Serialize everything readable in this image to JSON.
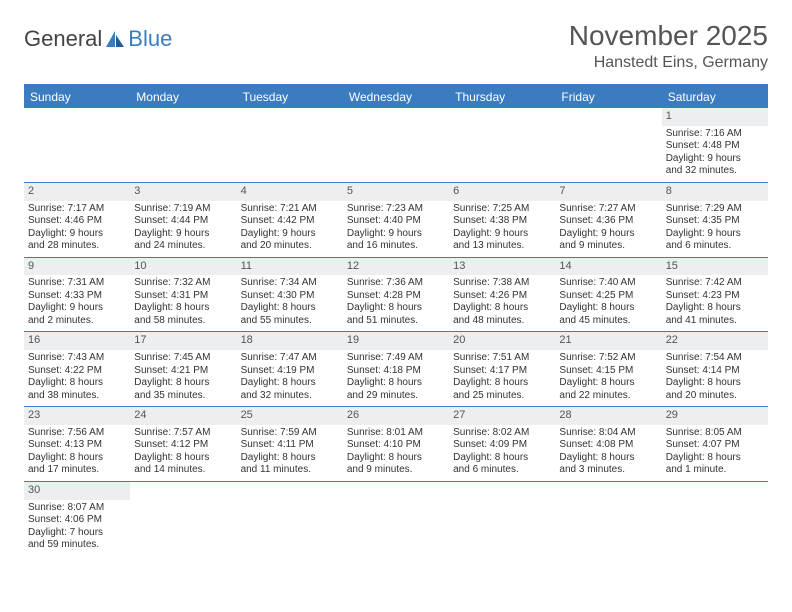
{
  "logo": {
    "text_general": "General",
    "text_blue": "Blue"
  },
  "header": {
    "month_title": "November 2025",
    "location": "Hanstedt Eins, Germany"
  },
  "colors": {
    "header_bg": "#3b7bbf",
    "header_text": "#ffffff",
    "daynum_bg": "#eceeef",
    "border": "#3b7bbf",
    "text": "#333333",
    "title_text": "#555555"
  },
  "day_names": [
    "Sunday",
    "Monday",
    "Tuesday",
    "Wednesday",
    "Thursday",
    "Friday",
    "Saturday"
  ],
  "weeks": [
    [
      null,
      null,
      null,
      null,
      null,
      null,
      {
        "n": "1",
        "sr": "Sunrise: 7:16 AM",
        "ss": "Sunset: 4:48 PM",
        "dl1": "Daylight: 9 hours",
        "dl2": "and 32 minutes."
      }
    ],
    [
      {
        "n": "2",
        "sr": "Sunrise: 7:17 AM",
        "ss": "Sunset: 4:46 PM",
        "dl1": "Daylight: 9 hours",
        "dl2": "and 28 minutes."
      },
      {
        "n": "3",
        "sr": "Sunrise: 7:19 AM",
        "ss": "Sunset: 4:44 PM",
        "dl1": "Daylight: 9 hours",
        "dl2": "and 24 minutes."
      },
      {
        "n": "4",
        "sr": "Sunrise: 7:21 AM",
        "ss": "Sunset: 4:42 PM",
        "dl1": "Daylight: 9 hours",
        "dl2": "and 20 minutes."
      },
      {
        "n": "5",
        "sr": "Sunrise: 7:23 AM",
        "ss": "Sunset: 4:40 PM",
        "dl1": "Daylight: 9 hours",
        "dl2": "and 16 minutes."
      },
      {
        "n": "6",
        "sr": "Sunrise: 7:25 AM",
        "ss": "Sunset: 4:38 PM",
        "dl1": "Daylight: 9 hours",
        "dl2": "and 13 minutes."
      },
      {
        "n": "7",
        "sr": "Sunrise: 7:27 AM",
        "ss": "Sunset: 4:36 PM",
        "dl1": "Daylight: 9 hours",
        "dl2": "and 9 minutes."
      },
      {
        "n": "8",
        "sr": "Sunrise: 7:29 AM",
        "ss": "Sunset: 4:35 PM",
        "dl1": "Daylight: 9 hours",
        "dl2": "and 6 minutes."
      }
    ],
    [
      {
        "n": "9",
        "sr": "Sunrise: 7:31 AM",
        "ss": "Sunset: 4:33 PM",
        "dl1": "Daylight: 9 hours",
        "dl2": "and 2 minutes."
      },
      {
        "n": "10",
        "sr": "Sunrise: 7:32 AM",
        "ss": "Sunset: 4:31 PM",
        "dl1": "Daylight: 8 hours",
        "dl2": "and 58 minutes."
      },
      {
        "n": "11",
        "sr": "Sunrise: 7:34 AM",
        "ss": "Sunset: 4:30 PM",
        "dl1": "Daylight: 8 hours",
        "dl2": "and 55 minutes."
      },
      {
        "n": "12",
        "sr": "Sunrise: 7:36 AM",
        "ss": "Sunset: 4:28 PM",
        "dl1": "Daylight: 8 hours",
        "dl2": "and 51 minutes."
      },
      {
        "n": "13",
        "sr": "Sunrise: 7:38 AM",
        "ss": "Sunset: 4:26 PM",
        "dl1": "Daylight: 8 hours",
        "dl2": "and 48 minutes."
      },
      {
        "n": "14",
        "sr": "Sunrise: 7:40 AM",
        "ss": "Sunset: 4:25 PM",
        "dl1": "Daylight: 8 hours",
        "dl2": "and 45 minutes."
      },
      {
        "n": "15",
        "sr": "Sunrise: 7:42 AM",
        "ss": "Sunset: 4:23 PM",
        "dl1": "Daylight: 8 hours",
        "dl2": "and 41 minutes."
      }
    ],
    [
      {
        "n": "16",
        "sr": "Sunrise: 7:43 AM",
        "ss": "Sunset: 4:22 PM",
        "dl1": "Daylight: 8 hours",
        "dl2": "and 38 minutes."
      },
      {
        "n": "17",
        "sr": "Sunrise: 7:45 AM",
        "ss": "Sunset: 4:21 PM",
        "dl1": "Daylight: 8 hours",
        "dl2": "and 35 minutes."
      },
      {
        "n": "18",
        "sr": "Sunrise: 7:47 AM",
        "ss": "Sunset: 4:19 PM",
        "dl1": "Daylight: 8 hours",
        "dl2": "and 32 minutes."
      },
      {
        "n": "19",
        "sr": "Sunrise: 7:49 AM",
        "ss": "Sunset: 4:18 PM",
        "dl1": "Daylight: 8 hours",
        "dl2": "and 29 minutes."
      },
      {
        "n": "20",
        "sr": "Sunrise: 7:51 AM",
        "ss": "Sunset: 4:17 PM",
        "dl1": "Daylight: 8 hours",
        "dl2": "and 25 minutes."
      },
      {
        "n": "21",
        "sr": "Sunrise: 7:52 AM",
        "ss": "Sunset: 4:15 PM",
        "dl1": "Daylight: 8 hours",
        "dl2": "and 22 minutes."
      },
      {
        "n": "22",
        "sr": "Sunrise: 7:54 AM",
        "ss": "Sunset: 4:14 PM",
        "dl1": "Daylight: 8 hours",
        "dl2": "and 20 minutes."
      }
    ],
    [
      {
        "n": "23",
        "sr": "Sunrise: 7:56 AM",
        "ss": "Sunset: 4:13 PM",
        "dl1": "Daylight: 8 hours",
        "dl2": "and 17 minutes."
      },
      {
        "n": "24",
        "sr": "Sunrise: 7:57 AM",
        "ss": "Sunset: 4:12 PM",
        "dl1": "Daylight: 8 hours",
        "dl2": "and 14 minutes."
      },
      {
        "n": "25",
        "sr": "Sunrise: 7:59 AM",
        "ss": "Sunset: 4:11 PM",
        "dl1": "Daylight: 8 hours",
        "dl2": "and 11 minutes."
      },
      {
        "n": "26",
        "sr": "Sunrise: 8:01 AM",
        "ss": "Sunset: 4:10 PM",
        "dl1": "Daylight: 8 hours",
        "dl2": "and 9 minutes."
      },
      {
        "n": "27",
        "sr": "Sunrise: 8:02 AM",
        "ss": "Sunset: 4:09 PM",
        "dl1": "Daylight: 8 hours",
        "dl2": "and 6 minutes."
      },
      {
        "n": "28",
        "sr": "Sunrise: 8:04 AM",
        "ss": "Sunset: 4:08 PM",
        "dl1": "Daylight: 8 hours",
        "dl2": "and 3 minutes."
      },
      {
        "n": "29",
        "sr": "Sunrise: 8:05 AM",
        "ss": "Sunset: 4:07 PM",
        "dl1": "Daylight: 8 hours",
        "dl2": "and 1 minute."
      }
    ],
    [
      {
        "n": "30",
        "sr": "Sunrise: 8:07 AM",
        "ss": "Sunset: 4:06 PM",
        "dl1": "Daylight: 7 hours",
        "dl2": "and 59 minutes."
      },
      null,
      null,
      null,
      null,
      null,
      null
    ]
  ]
}
